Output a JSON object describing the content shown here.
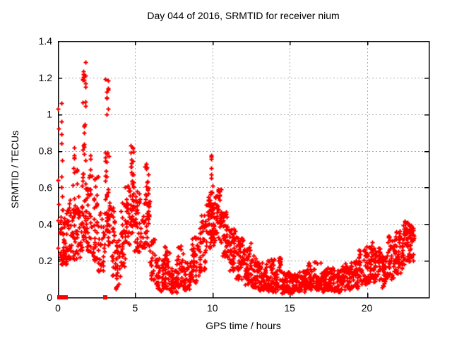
{
  "chart_data": {
    "type": "scatter",
    "title": "Day 044 of 2016, SRMTID for receiver nium",
    "xlabel": "GPS time / hours",
    "ylabel": "SRMTID / TECUs",
    "xlim": [
      0,
      24
    ],
    "ylim": [
      0,
      1.4
    ],
    "xticks": [
      {
        "v": 0,
        "label": "0"
      },
      {
        "v": 5,
        "label": "5"
      },
      {
        "v": 10,
        "label": "10"
      },
      {
        "v": 15,
        "label": "15"
      },
      {
        "v": 20,
        "label": "20"
      }
    ],
    "yticks": [
      {
        "v": 0,
        "label": "0"
      },
      {
        "v": 0.2,
        "label": "0.2"
      },
      {
        "v": 0.4,
        "label": "0.4"
      },
      {
        "v": 0.6,
        "label": "0.6"
      },
      {
        "v": 0.8,
        "label": "0.8"
      },
      {
        "v": 1,
        "label": "1"
      },
      {
        "v": 1.2,
        "label": "1.2"
      },
      {
        "v": 1.4,
        "label": "1.4"
      }
    ],
    "grid": "dashed",
    "legend": false,
    "marker": "plus",
    "marker_color": "#ff0000",
    "grid_color": "#ababab",
    "axis_color": "#000000",
    "points_exact": [
      [
        0.02,
        0.27
      ],
      [
        0.02,
        0.42
      ],
      [
        0.03,
        0.51
      ],
      [
        0.02,
        0.64
      ],
      [
        0.03,
        0.92
      ],
      [
        0.02,
        1.03
      ],
      [
        0.23,
        1.06
      ],
      [
        0.24,
        0.96
      ],
      [
        0.25,
        0.89
      ],
      [
        0.23,
        0.84
      ],
      [
        0.26,
        0.75
      ],
      [
        0.24,
        0.66
      ],
      [
        0.25,
        0.6
      ],
      [
        0.26,
        0.55
      ],
      [
        17.0,
        0.19
      ],
      [
        18.6,
        0.185
      ]
    ],
    "zero_markers_x": [
      0.1,
      0.35,
      0.5,
      3.05
    ],
    "density_bins": [
      [
        0.1,
        0.6,
        0.18,
        0.48,
        55,
        1.2
      ],
      [
        0.6,
        1.4,
        0.2,
        0.55,
        70,
        1.2
      ],
      [
        0.9,
        1.25,
        0.55,
        0.82,
        10,
        1.0
      ],
      [
        1.4,
        1.6,
        0.25,
        0.5,
        14,
        1.0
      ],
      [
        1.55,
        1.85,
        0.3,
        0.65,
        28,
        1.1
      ],
      [
        1.6,
        1.8,
        0.65,
        1.08,
        16,
        0.9
      ],
      [
        1.62,
        1.78,
        1.1,
        1.29,
        12,
        0.7
      ],
      [
        1.85,
        2.2,
        0.25,
        0.6,
        30,
        1.2
      ],
      [
        1.95,
        2.15,
        0.6,
        0.78,
        5,
        1.0
      ],
      [
        2.2,
        2.6,
        0.2,
        0.68,
        38,
        1.3
      ],
      [
        2.6,
        3.0,
        0.1,
        0.5,
        30,
        1.2
      ],
      [
        3.0,
        3.35,
        0.25,
        0.65,
        32,
        1.0
      ],
      [
        3.05,
        3.3,
        0.65,
        0.8,
        10,
        1.0
      ],
      [
        3.08,
        3.28,
        0.88,
        1.2,
        9,
        0.7
      ],
      [
        3.35,
        3.7,
        0.12,
        0.5,
        28,
        1.2
      ],
      [
        3.7,
        4.0,
        0.03,
        0.32,
        28,
        1.1
      ],
      [
        4.0,
        4.35,
        0.15,
        0.52,
        32,
        1.1
      ],
      [
        4.35,
        4.65,
        0.28,
        0.62,
        28,
        1.0
      ],
      [
        4.65,
        4.95,
        0.35,
        0.68,
        32,
        1.0
      ],
      [
        4.7,
        4.9,
        0.68,
        0.85,
        12,
        0.9
      ],
      [
        4.95,
        5.35,
        0.25,
        0.58,
        38,
        1.2
      ],
      [
        5.35,
        5.6,
        0.25,
        0.46,
        18,
        1.0
      ],
      [
        5.6,
        5.95,
        0.28,
        0.55,
        28,
        1.1
      ],
      [
        5.62,
        5.9,
        0.55,
        0.74,
        14,
        0.9
      ],
      [
        5.95,
        6.3,
        0.08,
        0.32,
        24,
        1.1
      ],
      [
        6.3,
        6.8,
        0.03,
        0.22,
        38,
        1.2
      ],
      [
        6.8,
        7.2,
        0.05,
        0.28,
        38,
        1.2
      ],
      [
        7.2,
        7.7,
        0.02,
        0.16,
        40,
        1.1
      ],
      [
        7.7,
        8.1,
        0.05,
        0.3,
        34,
        1.2
      ],
      [
        8.1,
        8.6,
        0.04,
        0.2,
        40,
        1.1
      ],
      [
        8.6,
        9.2,
        0.08,
        0.33,
        48,
        1.2
      ],
      [
        9.2,
        9.6,
        0.14,
        0.46,
        38,
        1.1
      ],
      [
        9.6,
        9.85,
        0.25,
        0.55,
        24,
        1.0
      ],
      [
        9.82,
        10.05,
        0.3,
        0.6,
        26,
        1.0
      ],
      [
        9.85,
        10.0,
        0.6,
        0.78,
        9,
        0.8
      ],
      [
        10.05,
        10.3,
        0.27,
        0.55,
        24,
        1.1
      ],
      [
        10.3,
        10.55,
        0.3,
        0.63,
        24,
        0.9
      ],
      [
        10.55,
        11.0,
        0.22,
        0.48,
        45,
        1.1
      ],
      [
        11.0,
        11.5,
        0.14,
        0.38,
        45,
        1.1
      ],
      [
        11.5,
        12.0,
        0.1,
        0.33,
        45,
        1.1
      ],
      [
        12.0,
        12.5,
        0.07,
        0.3,
        45,
        1.2
      ],
      [
        12.5,
        13.0,
        0.05,
        0.23,
        45,
        1.2
      ],
      [
        13.0,
        13.5,
        0.04,
        0.19,
        45,
        1.2
      ],
      [
        13.5,
        14.0,
        0.03,
        0.21,
        45,
        1.2
      ],
      [
        14.0,
        14.25,
        0.03,
        0.15,
        20,
        1.1
      ],
      [
        14.25,
        14.45,
        0.05,
        0.24,
        16,
        1.0
      ],
      [
        14.45,
        15.0,
        0.02,
        0.14,
        45,
        1.1
      ],
      [
        15.0,
        15.6,
        0.02,
        0.13,
        50,
        1.1
      ],
      [
        15.6,
        16.2,
        0.03,
        0.15,
        50,
        1.1
      ],
      [
        16.2,
        16.8,
        0.04,
        0.2,
        48,
        1.2
      ],
      [
        16.8,
        17.3,
        0.03,
        0.14,
        45,
        1.1
      ],
      [
        17.3,
        17.8,
        0.04,
        0.17,
        45,
        1.2
      ],
      [
        17.8,
        18.4,
        0.03,
        0.15,
        48,
        1.1
      ],
      [
        18.4,
        18.95,
        0.04,
        0.17,
        48,
        1.1
      ],
      [
        18.95,
        19.45,
        0.05,
        0.21,
        45,
        1.2
      ],
      [
        19.45,
        19.95,
        0.07,
        0.27,
        45,
        1.2
      ],
      [
        19.95,
        20.45,
        0.08,
        0.3,
        45,
        1.2
      ],
      [
        20.45,
        20.9,
        0.08,
        0.27,
        42,
        1.2
      ],
      [
        20.9,
        21.3,
        0.05,
        0.23,
        38,
        1.1
      ],
      [
        21.3,
        21.8,
        0.1,
        0.34,
        45,
        1.1
      ],
      [
        21.8,
        22.3,
        0.13,
        0.37,
        45,
        1.0
      ],
      [
        22.3,
        22.75,
        0.17,
        0.42,
        48,
        0.85
      ],
      [
        22.75,
        23.05,
        0.2,
        0.4,
        30,
        0.8
      ]
    ]
  }
}
